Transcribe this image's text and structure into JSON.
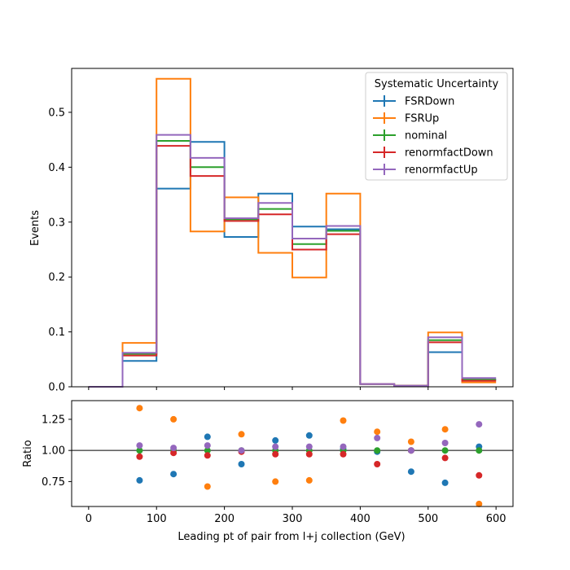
{
  "chart_data": [
    {
      "type": "step",
      "ylabel": "Events",
      "ylim": [
        0,
        0.58
      ],
      "xlim": [
        -25,
        625
      ],
      "bin_edges": [
        0,
        50,
        100,
        150,
        200,
        250,
        300,
        350,
        400,
        450,
        500,
        550,
        600
      ],
      "yticks": [
        "0.0",
        "0.1",
        "0.2",
        "0.3",
        "0.4",
        "0.5"
      ],
      "legend": {
        "title": "Systematic Uncertainty",
        "placement": "top-right"
      },
      "series": [
        {
          "name": "FSRDown",
          "color": "#1f77b4",
          "values": [
            0,
            0.047,
            0.361,
            0.446,
            0.273,
            0.352,
            0.292,
            0.287,
            0.005,
            0.002,
            0.063,
            0.013
          ]
        },
        {
          "name": "FSRUp",
          "color": "#ff7f0e",
          "values": [
            0,
            0.08,
            0.561,
            0.283,
            0.345,
            0.244,
            0.199,
            0.352,
            0.005,
            0.002,
            0.099,
            0.008
          ]
        },
        {
          "name": "nominal",
          "color": "#2ca02c",
          "values": [
            0,
            0.06,
            0.448,
            0.4,
            0.305,
            0.324,
            0.26,
            0.284,
            0.005,
            0.002,
            0.085,
            0.013
          ]
        },
        {
          "name": "renormfactDown",
          "color": "#d62728",
          "values": [
            0,
            0.057,
            0.439,
            0.384,
            0.302,
            0.314,
            0.25,
            0.278,
            0.005,
            0.002,
            0.081,
            0.011
          ]
        },
        {
          "name": "renormfactUp",
          "color": "#9467bd",
          "values": [
            0,
            0.062,
            0.459,
            0.417,
            0.307,
            0.335,
            0.27,
            0.293,
            0.005,
            0.002,
            0.09,
            0.016
          ]
        }
      ]
    },
    {
      "type": "scatter",
      "xlabel": "Leading pt of pair from l+j collection (GeV)",
      "ylabel": "Ratio",
      "ylim": [
        0.55,
        1.4
      ],
      "xlim": [
        -25,
        625
      ],
      "reference_line": 1.0,
      "xticks": [
        "0",
        "100",
        "200",
        "300",
        "400",
        "500",
        "600"
      ],
      "yticks": [
        "0.75",
        "1.00",
        "1.25"
      ],
      "x": [
        75,
        125,
        175,
        225,
        275,
        325,
        375,
        425,
        475,
        525,
        575
      ],
      "series": [
        {
          "name": "FSRDown",
          "color": "#1f77b4",
          "values": [
            0.76,
            0.81,
            1.11,
            0.89,
            1.08,
            1.12,
            1.01,
            0.99,
            0.83,
            0.74,
            1.03
          ]
        },
        {
          "name": "FSRUp",
          "color": "#ff7f0e",
          "values": [
            1.34,
            1.25,
            0.71,
            1.13,
            0.75,
            0.76,
            1.24,
            1.15,
            1.07,
            1.17,
            0.57
          ]
        },
        {
          "name": "nominal",
          "color": "#2ca02c",
          "values": [
            1.0,
            1.0,
            1.0,
            1.0,
            1.0,
            1.0,
            1.0,
            1.0,
            1.0,
            1.0,
            1.0
          ]
        },
        {
          "name": "renormfactDown",
          "color": "#d62728",
          "values": [
            0.95,
            0.98,
            0.96,
            0.99,
            0.97,
            0.97,
            0.97,
            0.89,
            1.0,
            0.94,
            0.8
          ]
        },
        {
          "name": "renormfactUp",
          "color": "#9467bd",
          "values": [
            1.04,
            1.02,
            1.04,
            1.0,
            1.03,
            1.03,
            1.03,
            1.1,
            1.0,
            1.06,
            1.21
          ]
        }
      ]
    }
  ]
}
